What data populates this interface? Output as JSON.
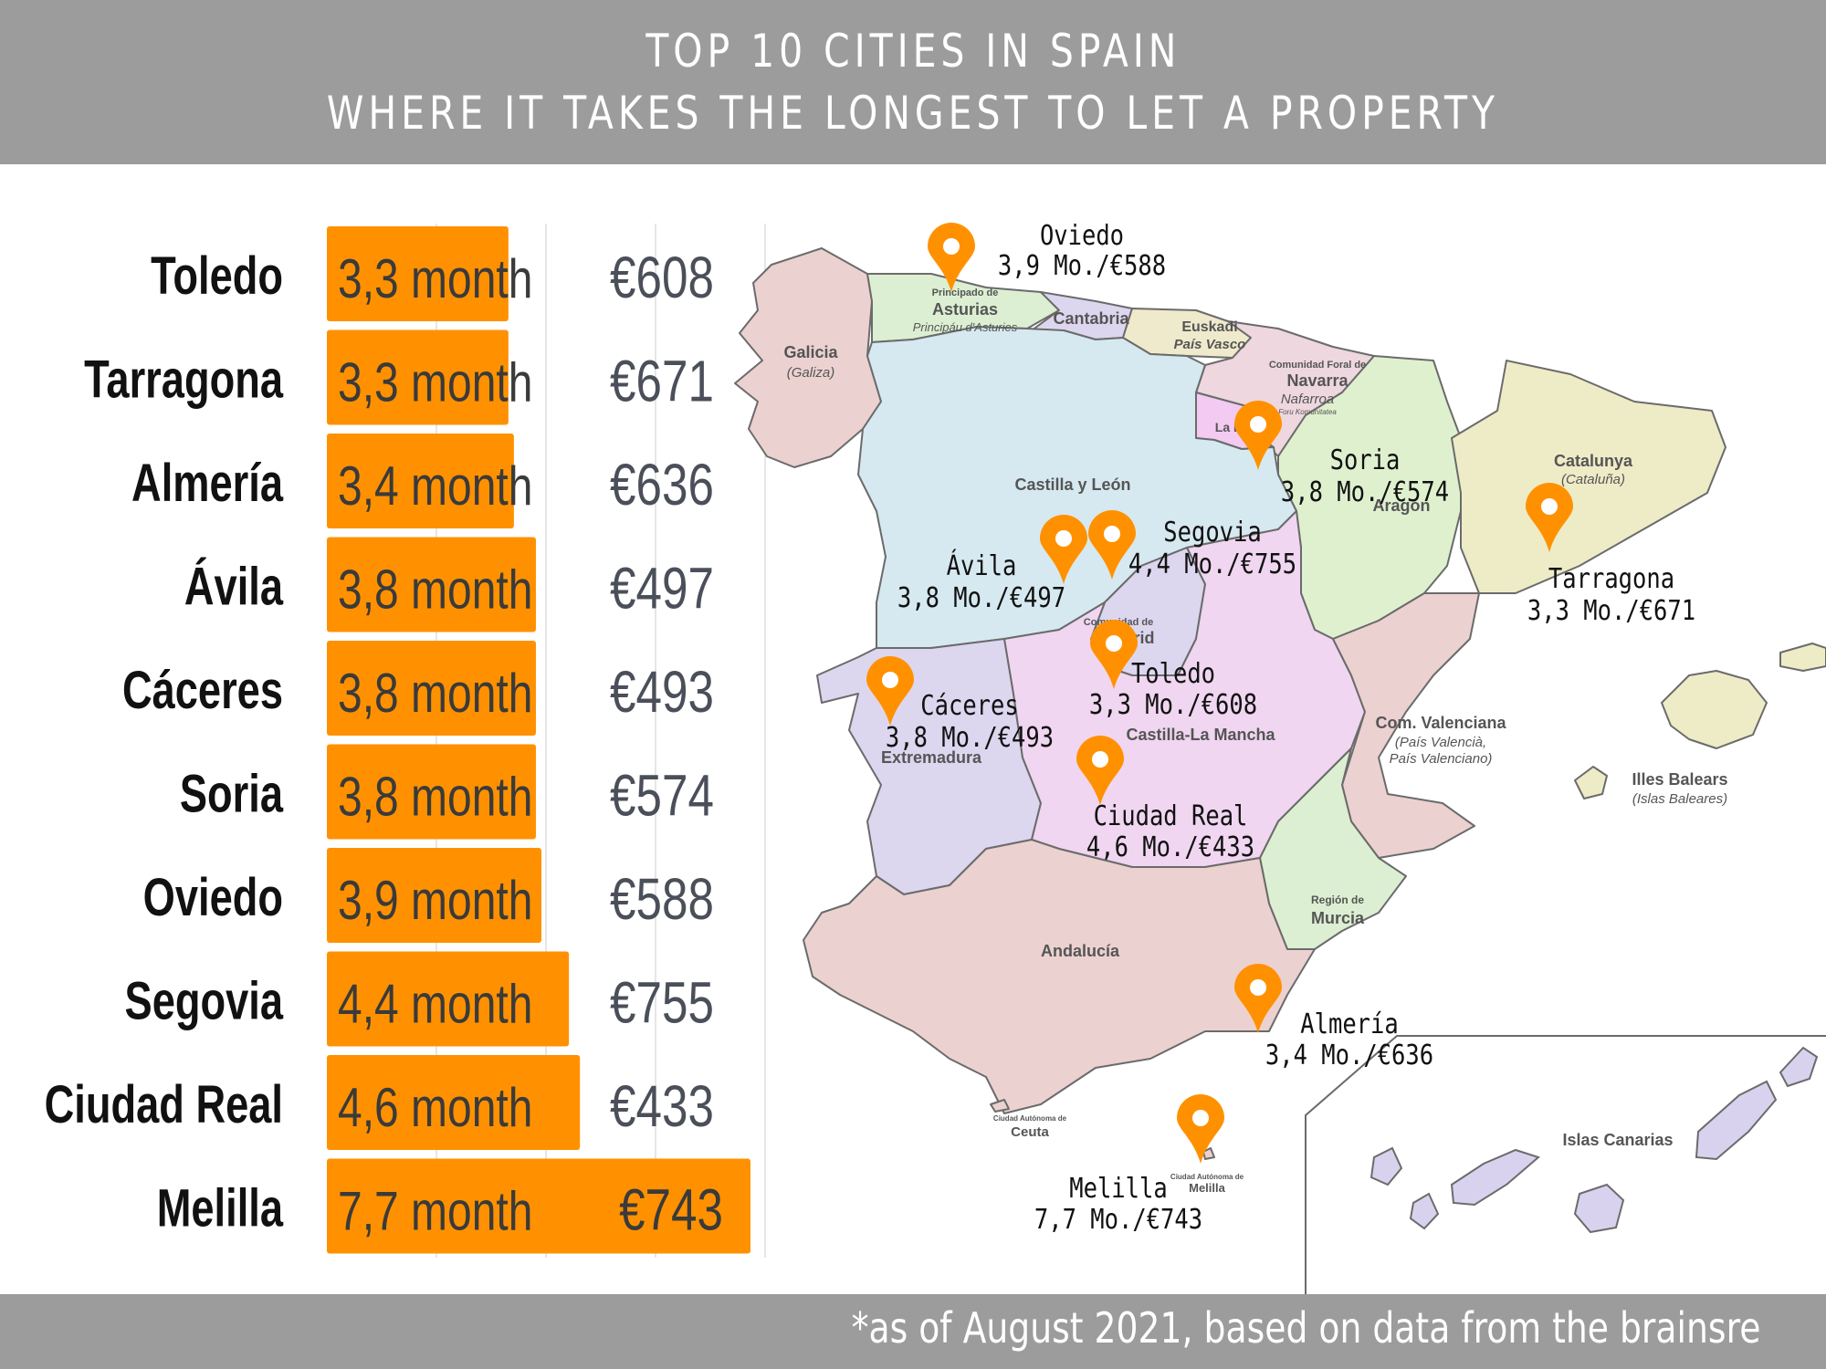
{
  "header": {
    "title_line1": "TOP 10 CITIES IN SPAIN",
    "title_line2": "WHERE IT TAKES THE LONGEST TO LET A PROPERTY"
  },
  "footer": {
    "note": "*as of August 2021, based on data from the brainsre"
  },
  "colors": {
    "bar": "#ff9100",
    "header": "#9c9c9c",
    "price": "#4a4f59",
    "pin": "#ff9100"
  },
  "chart_data": {
    "type": "bar",
    "orientation": "horizontal",
    "categories": [
      "Toledo",
      "Tarragona",
      "Almería",
      "Ávila",
      "Cáceres",
      "Soria",
      "Oviedo",
      "Segovia",
      "Ciudad Real",
      "Melilla"
    ],
    "values": [
      3.3,
      3.3,
      3.4,
      3.8,
      3.8,
      3.8,
      3.9,
      4.4,
      4.6,
      7.7
    ],
    "value_labels": [
      "3,3 month",
      "3,3 month",
      "3,4 month",
      "3,8 month",
      "3,8 month",
      "3,8 month",
      "3,9 month",
      "4,4 month",
      "4,6 month",
      "7,7 month"
    ],
    "prices": [
      "€608",
      "€671",
      "€636",
      "€497",
      "€493",
      "€574",
      "€588",
      "€755",
      "€433",
      "€743"
    ],
    "xlim": [
      0,
      7.7
    ],
    "grid": true
  },
  "map": {
    "regions": [
      {
        "name": "Galicia",
        "sub": "(Galiza)"
      },
      {
        "name": "Principado de",
        "sub": "Asturias",
        "sub2": "Principáu d'Asturies"
      },
      {
        "name": "Cantabria"
      },
      {
        "name": "Euskadi",
        "sub": "País Vasco"
      },
      {
        "name": "Comunidad Foral de",
        "sub": "Navarra",
        "sub2": "Nafarroa",
        "sub3": "Foru Komunitatea"
      },
      {
        "name": "La Rioja"
      },
      {
        "name": "Aragón"
      },
      {
        "name": "Catalunya",
        "sub": "(Cataluña)"
      },
      {
        "name": "Castilla y León"
      },
      {
        "name": "Comunidad de",
        "sub": "Madrid"
      },
      {
        "name": "Extremadura"
      },
      {
        "name": "Castilla-La Mancha"
      },
      {
        "name": "Com. Valenciana",
        "sub": "(País Valencià,",
        "sub2": "País Valenciano)"
      },
      {
        "name": "Illes Balears",
        "sub": "(Islas Baleares)"
      },
      {
        "name": "Región de",
        "sub": "Murcia"
      },
      {
        "name": "Andalucía"
      },
      {
        "name": "Ciudad Autónoma de",
        "sub": "Ceuta"
      },
      {
        "name": "Ciudad Autónoma de",
        "sub": "Melilla"
      },
      {
        "name": "Islas Canarias"
      }
    ],
    "pins": [
      {
        "city": "Oviedo",
        "info": "3,9 Mo./€588"
      },
      {
        "city": "Soria",
        "info": "3,8 Mo./€574"
      },
      {
        "city": "Tarragona",
        "info": "3,3 Mo./€671"
      },
      {
        "city": "Segovia",
        "info": "4,4 Mo./€755"
      },
      {
        "city": "Ávila",
        "info": "3,8 Mo./€497"
      },
      {
        "city": "Toledo",
        "info": "3,3 Mo./€608"
      },
      {
        "city": "Cáceres",
        "info": "3,8 Mo./€493"
      },
      {
        "city": "Ciudad Real",
        "info": "4,6 Mo./€433"
      },
      {
        "city": "Almería",
        "info": "3,4 Mo./€636"
      },
      {
        "city": "Melilla",
        "info": "7,7 Mo./€743"
      }
    ]
  }
}
